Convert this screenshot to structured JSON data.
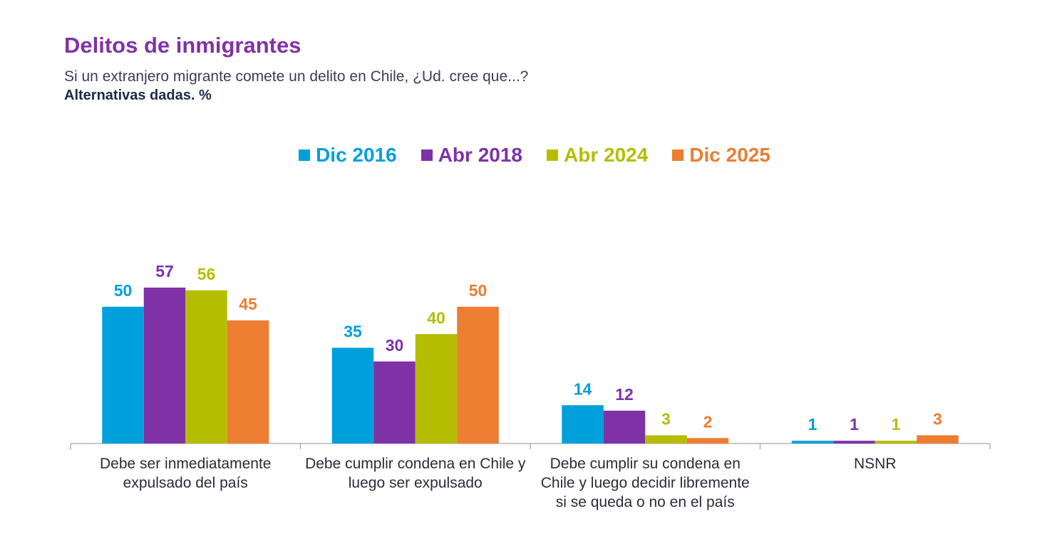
{
  "chart_data": {
    "type": "bar",
    "title": "Delitos de inmigrantes",
    "subtitle": "Si un extranjero migrante comete un delito en Chile, ¿Ud. cree que...?",
    "note": "Alternativas dadas. %",
    "categories": [
      "Debe ser inmediatamente expulsado del país",
      "Debe cumplir condena en Chile y luego ser expulsado",
      "Debe cumplir su condena en Chile y luego decidir libremente si se queda o no en el país",
      "NSNR"
    ],
    "series": [
      {
        "name": "Dic 2016",
        "color": "#00a0dc",
        "values": [
          50,
          35,
          14,
          1
        ]
      },
      {
        "name": "Abr 2018",
        "color": "#7f31a6",
        "values": [
          57,
          30,
          12,
          1
        ]
      },
      {
        "name": "Abr 2024",
        "color": "#b5bd00",
        "values": [
          56,
          40,
          3,
          1
        ]
      },
      {
        "name": "Dic 2025",
        "color": "#ed7d31",
        "values": [
          45,
          50,
          2,
          3
        ]
      }
    ]
  }
}
